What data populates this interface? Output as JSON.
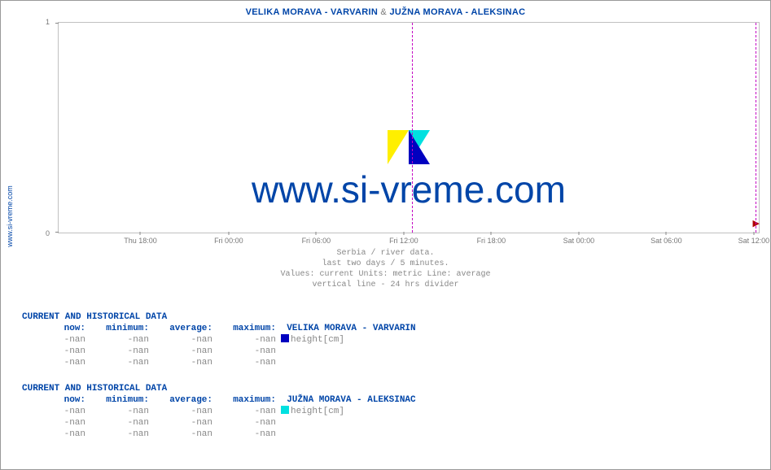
{
  "site_url": "www.si-vreme.com",
  "title": {
    "seg1": "VELIKA MORAVA -  VARVARIN",
    "amp": " & ",
    "seg2": "JUŽNA MORAVA -  ALEKSINAC"
  },
  "chart": {
    "type": "line",
    "ylim": [
      0,
      1
    ],
    "yticks": [
      0,
      1
    ],
    "grid_color": "#c0c0c0",
    "background_color": "#ffffff",
    "divider_color": "#c300c3",
    "arrow_color": "#b00000",
    "divider_positions_pct": [
      50.5,
      99.5
    ],
    "x_labels": [
      "Thu 18:00",
      "Fri 00:00",
      "Fri 06:00",
      "Fri 12:00",
      "Fri 18:00",
      "Sat 00:00",
      "Sat 06:00",
      "Sat 12:00"
    ],
    "x_positions_pct": [
      11.8,
      24.4,
      36.9,
      49.4,
      61.9,
      74.4,
      86.9,
      99.4
    ],
    "watermark_text": "www.si-vreme.com",
    "watermark_color": "#0045a8",
    "watermark_fontsize": 46,
    "logo_colors": {
      "yellow": "#ffef00",
      "cyan": "#00e0e0",
      "blue": "#0000c0"
    }
  },
  "caption": {
    "l1": "Serbia / river data.",
    "l2": "last two days / 5 minutes.",
    "l3": "Values: current  Units: metric  Line: average",
    "l4": "vertical line - 24 hrs  divider"
  },
  "tables": [
    {
      "header": "CURRENT AND HISTORICAL DATA",
      "columns": [
        "now:",
        "minimum:",
        "average:",
        "maximum:"
      ],
      "series_marker_color": "#0000c0",
      "series_label": "height[cm]",
      "series_name": "VELIKA MORAVA -  VARVARIN",
      "rows": [
        [
          "-nan",
          "-nan",
          "-nan",
          "-nan"
        ],
        [
          "-nan",
          "-nan",
          "-nan",
          "-nan"
        ],
        [
          "-nan",
          "-nan",
          "-nan",
          "-nan"
        ]
      ]
    },
    {
      "header": "CURRENT AND HISTORICAL DATA",
      "columns": [
        "now:",
        "minimum:",
        "average:",
        "maximum:"
      ],
      "series_marker_color": "#00e0e0",
      "series_label": "height[cm]",
      "series_name": "JUŽNA MORAVA -  ALEKSINAC",
      "rows": [
        [
          "-nan",
          "-nan",
          "-nan",
          "-nan"
        ],
        [
          "-nan",
          "-nan",
          "-nan",
          "-nan"
        ],
        [
          "-nan",
          "-nan",
          "-nan",
          "-nan"
        ]
      ]
    }
  ]
}
